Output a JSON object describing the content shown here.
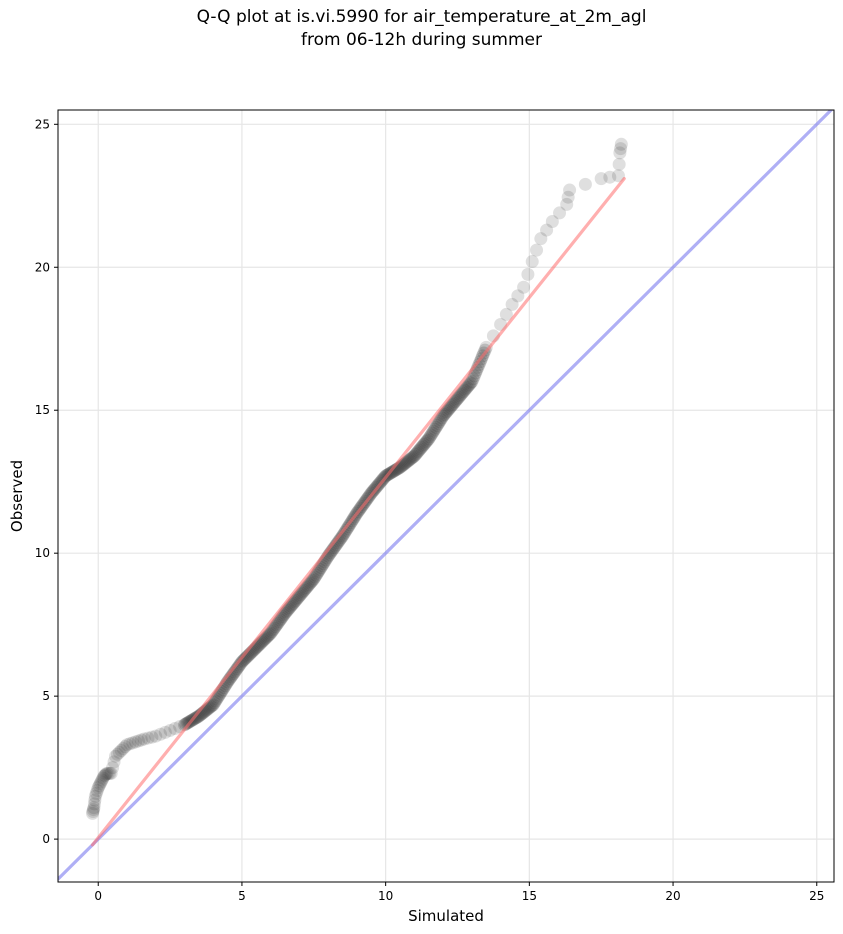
{
  "chart_data": {
    "type": "scatter",
    "title_lines": [
      "Q-Q plot at is.vi.5990 for air_temperature_at_2m_agl",
      "from 06-12h during summer"
    ],
    "xlabel": "Simulated",
    "ylabel": "Observed",
    "xlim": [
      -1.4,
      25.6
    ],
    "ylim": [
      -1.5,
      25.5
    ],
    "xticks": [
      0,
      5,
      10,
      15,
      20,
      25
    ],
    "yticks": [
      0,
      5,
      10,
      15,
      20,
      25
    ],
    "grid": true,
    "colors": {
      "points": "#3a3a3a",
      "fit_line": "#ff6e6e",
      "identity_line": "#7b7bf0"
    },
    "fit_line": {
      "x": [
        -0.2,
        18.3
      ],
      "y": [
        -0.2,
        23.1
      ]
    },
    "identity_line": {
      "x": [
        -1.4,
        25.6
      ],
      "y": [
        -1.4,
        25.6
      ]
    },
    "quantile_points": {
      "x": [
        -0.2,
        -0.15,
        -0.1,
        0.0,
        0.1,
        0.2,
        0.3,
        0.45,
        0.6,
        0.8,
        1.0,
        1.3,
        1.6,
        2.0,
        2.5,
        3.0,
        3.5,
        4.0,
        4.5,
        5.0,
        5.5,
        6.0,
        6.5,
        7.0,
        7.5,
        8.0,
        8.5,
        9.0,
        9.5,
        10.0,
        10.5,
        11.0,
        11.5,
        12.0,
        12.5,
        13.0,
        13.5,
        14.0,
        14.4,
        14.8,
        15.1,
        15.4,
        15.8,
        16.3,
        16.4,
        17.5,
        18.1,
        18.15,
        18.2
      ],
      "y": [
        0.9,
        1.1,
        1.5,
        1.8,
        2.0,
        2.2,
        2.3,
        2.3,
        2.9,
        3.1,
        3.3,
        3.4,
        3.5,
        3.6,
        3.8,
        4.0,
        4.3,
        4.7,
        5.5,
        6.2,
        6.7,
        7.2,
        7.9,
        8.5,
        9.1,
        9.9,
        10.6,
        11.4,
        12.1,
        12.7,
        13.0,
        13.4,
        14.0,
        14.8,
        15.4,
        16.0,
        17.2,
        18.0,
        18.7,
        19.3,
        20.2,
        21.0,
        21.6,
        22.2,
        22.7,
        23.1,
        23.2,
        24.0,
        24.3
      ]
    }
  }
}
